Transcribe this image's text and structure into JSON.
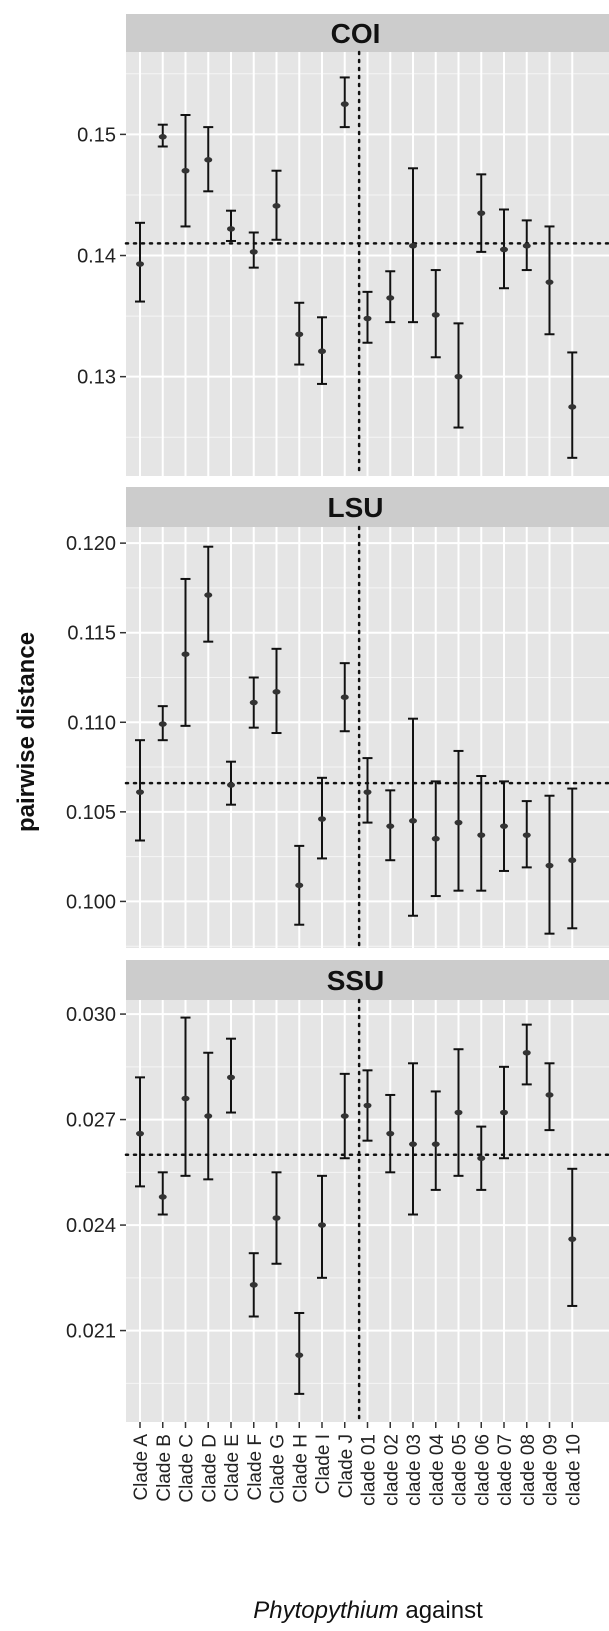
{
  "chart_data": {
    "type": "errorbar",
    "xlabel_italic": "Phytopythium",
    "xlabel_rest": " against",
    "ylabel": "pairwise distance",
    "categories": [
      "Clade A",
      "Clade B",
      "Clade C",
      "Clade D",
      "Clade E",
      "Clade F",
      "Clade G",
      "Clade H",
      "Clade I",
      "Clade J",
      "clade 01",
      "clade 02",
      "clade 03",
      "clade 04",
      "clade 05",
      "clade 06",
      "clade 07",
      "clade 08",
      "clade 09",
      "clade 10"
    ],
    "panels": [
      {
        "title": "COI",
        "ylim": [
          0.1218,
          0.1568
        ],
        "yticks": [
          0.13,
          0.14,
          0.15
        ],
        "ytick_labels": [
          "0.13",
          "0.14",
          "0.15"
        ],
        "hline": 0.141,
        "values": [
          0.1393,
          0.1498,
          0.147,
          0.1479,
          0.1422,
          0.1403,
          0.1441,
          0.1335,
          0.1321,
          0.1525,
          0.1348,
          0.1365,
          0.1408,
          0.1351,
          0.13,
          0.1435,
          0.1405,
          0.1408,
          0.1378,
          0.1275
        ],
        "lower": [
          0.1362,
          0.149,
          0.1424,
          0.1453,
          0.1412,
          0.139,
          0.1413,
          0.131,
          0.1294,
          0.1506,
          0.1328,
          0.1345,
          0.1345,
          0.1316,
          0.1258,
          0.1403,
          0.1373,
          0.1388,
          0.1335,
          0.1233
        ],
        "upper": [
          0.1427,
          0.1508,
          0.1516,
          0.1506,
          0.1437,
          0.1419,
          0.147,
          0.1361,
          0.1349,
          0.1547,
          0.137,
          0.1387,
          0.1472,
          0.1388,
          0.1344,
          0.1467,
          0.1438,
          0.1429,
          0.1424,
          0.132
        ]
      },
      {
        "title": "LSU",
        "ylim": [
          0.0974,
          0.1209
        ],
        "yticks": [
          0.1,
          0.105,
          0.11,
          0.115,
          0.12
        ],
        "ytick_labels": [
          "0.100",
          "0.105",
          "0.110",
          "0.115",
          "0.120"
        ],
        "hline": 0.1066,
        "values": [
          0.1061,
          0.1099,
          0.1138,
          0.1171,
          0.1065,
          0.1111,
          0.1117,
          0.1009,
          0.1046,
          0.1114,
          0.1061,
          0.1042,
          0.1045,
          0.1035,
          0.1044,
          0.1037,
          0.1042,
          0.1037,
          0.102,
          0.1023
        ],
        "lower": [
          0.1034,
          0.109,
          0.1098,
          0.1145,
          0.1054,
          0.1097,
          0.1094,
          0.0987,
          0.1024,
          0.1095,
          0.1044,
          0.1023,
          0.0992,
          0.1003,
          0.1006,
          0.1006,
          0.1017,
          0.1019,
          0.0982,
          0.0985
        ],
        "upper": [
          0.109,
          0.1109,
          0.118,
          0.1198,
          0.1078,
          0.1125,
          0.1141,
          0.1031,
          0.1069,
          0.1133,
          0.108,
          0.1062,
          0.1102,
          0.1067,
          0.1084,
          0.107,
          0.1067,
          0.1056,
          0.1059,
          0.1063
        ]
      },
      {
        "title": "SSU",
        "ylim": [
          0.0184,
          0.0304
        ],
        "yticks": [
          0.021,
          0.024,
          0.027,
          0.03
        ],
        "ytick_labels": [
          "0.021",
          "0.024",
          "0.027",
          "0.030"
        ],
        "hline": 0.026,
        "values": [
          0.0266,
          0.0248,
          0.0276,
          0.0271,
          0.0282,
          0.0223,
          0.0242,
          0.0203,
          0.024,
          0.0271,
          0.0274,
          0.0266,
          0.0263,
          0.0263,
          0.0272,
          0.0259,
          0.0272,
          0.0289,
          0.0277,
          0.0236
        ],
        "lower": [
          0.0251,
          0.0243,
          0.0254,
          0.0253,
          0.0272,
          0.0214,
          0.0229,
          0.0192,
          0.0225,
          0.0259,
          0.0264,
          0.0255,
          0.0243,
          0.025,
          0.0254,
          0.025,
          0.0259,
          0.028,
          0.0267,
          0.0217
        ],
        "upper": [
          0.0282,
          0.0255,
          0.0299,
          0.0289,
          0.0293,
          0.0232,
          0.0255,
          0.0215,
          0.0254,
          0.0283,
          0.0284,
          0.0277,
          0.0286,
          0.0278,
          0.029,
          0.0268,
          0.0285,
          0.0297,
          0.0286,
          0.0256
        ]
      }
    ],
    "style": {
      "panel_background": "#e5e5e5",
      "grid_color": "#ffffff",
      "strip_background": "#cccccc",
      "errorbar_color": "#111111",
      "reference_line_color": "#111111",
      "vline_between": [
        "Clade J",
        "clade 01"
      ]
    }
  }
}
